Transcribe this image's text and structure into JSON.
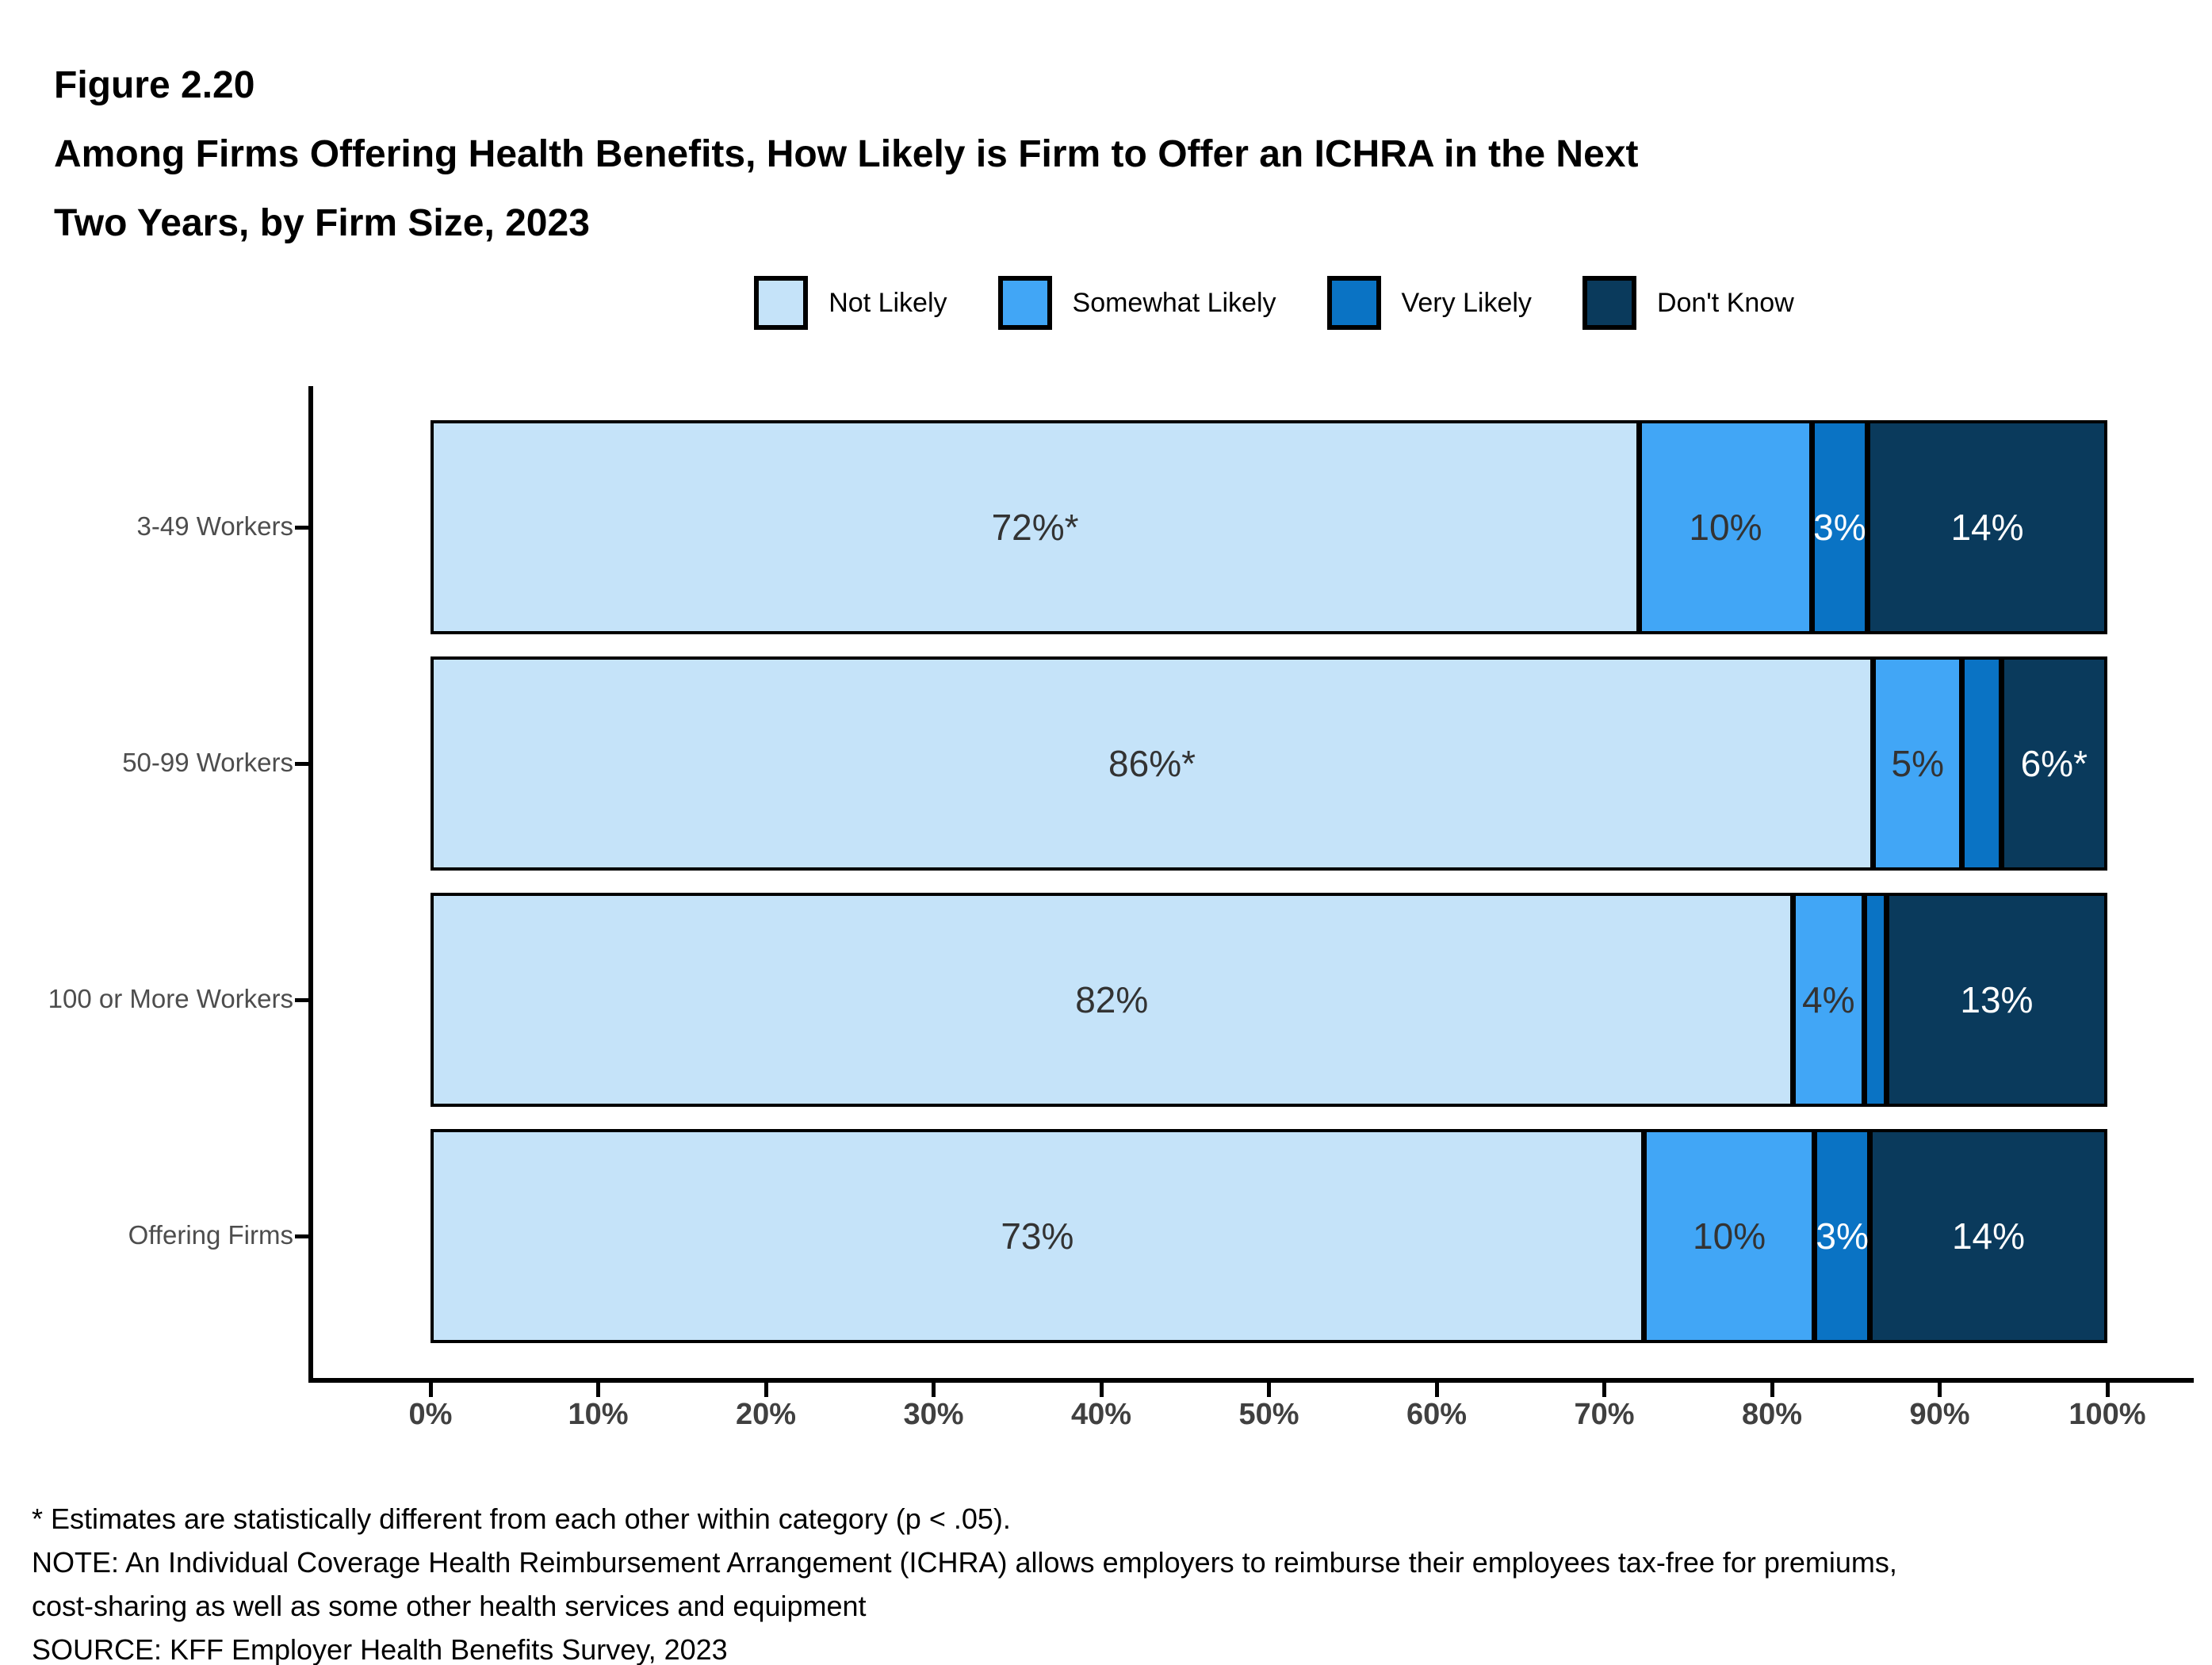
{
  "figure_label": "Figure 2.20",
  "title_line1": "Among Firms Offering Health Benefits, How Likely is Firm to Offer an ICHRA in the Next",
  "title_line2": "Two Years, by Firm Size, 2023",
  "legend": [
    {
      "label": "Not Likely",
      "color": "#C5E3F9"
    },
    {
      "label": "Somewhat Likely",
      "color": "#41A6F6"
    },
    {
      "label": "Very Likely",
      "color": "#0A73C4"
    },
    {
      "label": "Don't Know",
      "color": "#0A3A5C"
    }
  ],
  "chart_data": {
    "type": "bar",
    "stacked": true,
    "orientation": "horizontal",
    "title": "Among Firms Offering Health Benefits, How Likely is Firm to Offer an ICHRA in the Next Two Years, by Firm Size, 2023",
    "categories": [
      "3-49 Workers",
      "50-99 Workers",
      "100 or More Workers",
      "Offering Firms"
    ],
    "series": [
      {
        "name": "Not Likely",
        "color": "#C5E3F9",
        "label_color": "#333333",
        "values": [
          72,
          86,
          82,
          73
        ],
        "labels": [
          "72%*",
          "86%*",
          "82%",
          "73%"
        ]
      },
      {
        "name": "Somewhat Likely",
        "color": "#41A6F6",
        "label_color": "#333333",
        "values": [
          10,
          5,
          4,
          10
        ],
        "labels": [
          "10%",
          "5%",
          "4%",
          "10%"
        ]
      },
      {
        "name": "Very Likely",
        "color": "#0A73C4",
        "label_color": "#FFFFFF",
        "values": [
          3,
          2,
          1,
          3
        ],
        "labels": [
          "3%",
          "",
          "",
          "3%"
        ]
      },
      {
        "name": "Don't Know",
        "color": "#0A3A5C",
        "label_color": "#FFFFFF",
        "values": [
          14,
          6,
          13,
          14
        ],
        "labels": [
          "14%",
          "6%*",
          "13%",
          "14%"
        ]
      }
    ],
    "x_axis": {
      "tick_labels": [
        "0%",
        "10%",
        "20%",
        "30%",
        "40%",
        "50%",
        "60%",
        "70%",
        "80%",
        "90%",
        "100%"
      ],
      "range": [
        0,
        100
      ],
      "grid": false
    },
    "legend_position": "top"
  },
  "footnotes": [
    "* Estimates are statistically different from each other within category (p < .05).",
    "NOTE: An Individual Coverage Health Reimbursement Arrangement (ICHRA) allows employers to reimburse their employees tax-free for premiums,",
    "cost-sharing as well as some other health services and equipment",
    "SOURCE: KFF Employer Health Benefits Survey, 2023"
  ]
}
